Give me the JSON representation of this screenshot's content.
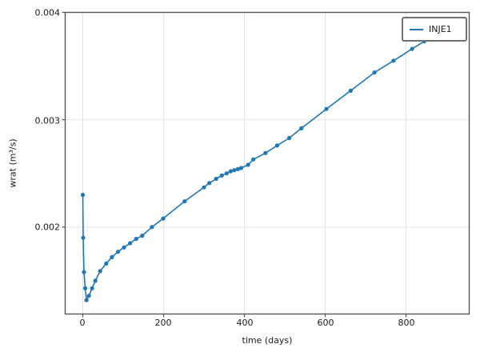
{
  "figure": {
    "background": "#ffffff",
    "grid_color": "#e4e4e4",
    "spine_color": "#555555",
    "tick_color": "#555555",
    "text_color": "#1a1a1a"
  },
  "legend": {
    "entries": [
      {
        "label": "INJE1",
        "color": "#1f77b4"
      }
    ],
    "position": "upper right",
    "border_color": "#707070"
  },
  "chart_data": {
    "type": "line",
    "title": "",
    "xlabel": "time (days)",
    "ylabel": "wrat (m³/s)",
    "xlim": [
      -43.6,
      956.4
    ],
    "ylim": [
      0.00119,
      0.004
    ],
    "grid": true,
    "legend_position": "upper right",
    "x_ticks": [
      0,
      200,
      400,
      600,
      800
    ],
    "x_tick_labels": [
      "0",
      "200",
      "400",
      "600",
      "800"
    ],
    "y_ticks": [
      0.002,
      0.003,
      0.004
    ],
    "y_tick_labels": [
      "0.002",
      "0.003",
      "0.004"
    ],
    "series": [
      {
        "name": "INJE1",
        "color": "#1f77b4",
        "marker": "circle",
        "x": [
          0,
          1,
          3,
          6,
          9,
          15,
          23,
          31,
          43,
          58,
          72,
          87,
          102,
          117,
          132,
          147,
          171,
          199,
          252,
          300,
          313,
          330,
          344,
          356,
          366,
          375,
          384,
          392,
          409,
          422,
          452,
          481,
          511,
          541,
          603,
          663,
          722,
          769,
          815,
          845,
          875,
          908
        ],
        "y": [
          0.0023,
          0.0019,
          0.00158,
          0.00143,
          0.00132,
          0.00136,
          0.00143,
          0.0015,
          0.00159,
          0.00166,
          0.00172,
          0.00177,
          0.00181,
          0.00185,
          0.00189,
          0.00192,
          0.002,
          0.00208,
          0.00224,
          0.00237,
          0.00241,
          0.00245,
          0.00248,
          0.0025,
          0.00252,
          0.00253,
          0.00254,
          0.00255,
          0.00258,
          0.00263,
          0.00269,
          0.00276,
          0.00283,
          0.00292,
          0.0031,
          0.00327,
          0.00344,
          0.00355,
          0.00366,
          0.00373,
          0.00381,
          0.0039
        ]
      }
    ]
  }
}
